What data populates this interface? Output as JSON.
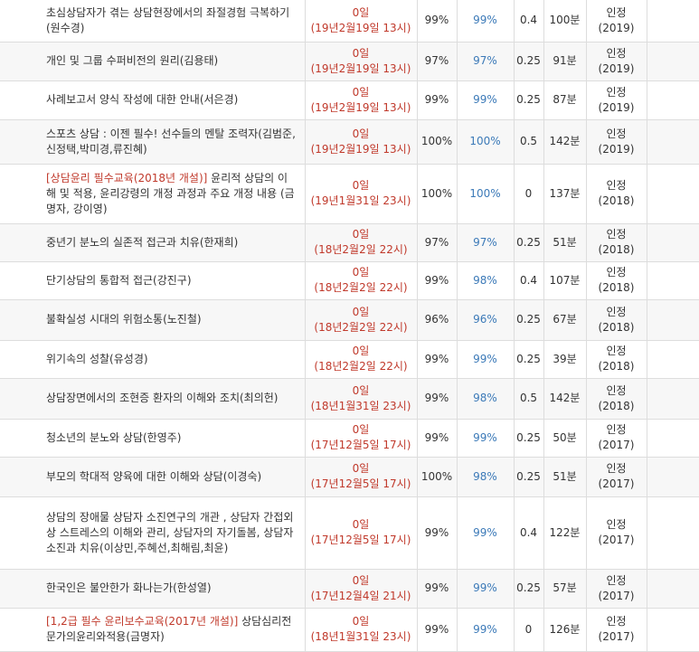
{
  "rows": [
    {
      "title": "초심상담자가 겪는 상담현장에서의 좌절경험 극복하기(원수경)",
      "highlight": "",
      "days": "0일",
      "deadline": "(19년2월19일 13시)",
      "rate1": "99%",
      "rate2": "99%",
      "credit": "0.4",
      "minutes": "100분",
      "status": "인정",
      "year": "(2019)"
    },
    {
      "title": "개인 및 그룹 수퍼비전의 원리(김용태)",
      "highlight": "",
      "days": "0일",
      "deadline": "(19년2월19일 13시)",
      "rate1": "97%",
      "rate2": "97%",
      "credit": "0.25",
      "minutes": "91분",
      "status": "인정",
      "year": "(2019)"
    },
    {
      "title": "사례보고서 양식 작성에 대한 안내(서은경)",
      "highlight": "",
      "days": "0일",
      "deadline": "(19년2월19일 13시)",
      "rate1": "99%",
      "rate2": "99%",
      "credit": "0.25",
      "minutes": "87분",
      "status": "인정",
      "year": "(2019)"
    },
    {
      "title": "스포츠 상담 : 이젠 필수! 선수들의 멘탈 조력자(김범준, 신정택,박미경,류진혜)",
      "highlight": "",
      "days": "0일",
      "deadline": "(19년2월19일 13시)",
      "rate1": "100%",
      "rate2": "100%",
      "credit": "0.5",
      "minutes": "142분",
      "status": "인정",
      "year": "(2019)"
    },
    {
      "title": " 윤리적 상담의 이해 및 적용, 윤리강령의 개정 과정과 주요 개정 내용 (금명자, 강이영)",
      "highlight": "[상담윤리 필수교육(2018년 개설)]",
      "days": "0일",
      "deadline": "(19년1월31일 23시)",
      "rate1": "100%",
      "rate2": "100%",
      "credit": "0",
      "minutes": "137분",
      "status": "인정",
      "year": "(2018)"
    },
    {
      "title": "중년기 분노의 실존적 접근과 치유(한재희)",
      "highlight": "",
      "days": "0일",
      "deadline": "(18년2월2일 22시)",
      "rate1": "97%",
      "rate2": "97%",
      "credit": "0.25",
      "minutes": "51분",
      "status": "인정",
      "year": "(2018)"
    },
    {
      "title": "단기상담의 통합적 접근(강진구)",
      "highlight": "",
      "days": "0일",
      "deadline": "(18년2월2일 22시)",
      "rate1": "99%",
      "rate2": "98%",
      "credit": "0.4",
      "minutes": "107분",
      "status": "인정",
      "year": "(2018)"
    },
    {
      "title": "불확실성 시대의 위험소통(노진철)",
      "highlight": "",
      "days": "0일",
      "deadline": "(18년2월2일 22시)",
      "rate1": "96%",
      "rate2": "96%",
      "credit": "0.25",
      "minutes": "67분",
      "status": "인정",
      "year": "(2018)"
    },
    {
      "title": "위기속의 성찰(유성경)",
      "highlight": "",
      "days": "0일",
      "deadline": "(18년2월2일 22시)",
      "rate1": "99%",
      "rate2": "99%",
      "credit": "0.25",
      "minutes": "39분",
      "status": "인정",
      "year": "(2018)"
    },
    {
      "title": "상담장면에서의 조현증 환자의 이해와 조치(최의헌)",
      "highlight": "",
      "days": "0일",
      "deadline": "(18년1월31일 23시)",
      "rate1": "99%",
      "rate2": "98%",
      "credit": "0.5",
      "minutes": "142분",
      "status": "인정",
      "year": "(2018)"
    },
    {
      "title": "청소년의 분노와 상담(한영주)",
      "highlight": "",
      "days": "0일",
      "deadline": "(17년12월5일 17시)",
      "rate1": "99%",
      "rate2": "99%",
      "credit": "0.25",
      "minutes": "50분",
      "status": "인정",
      "year": "(2017)"
    },
    {
      "title": "부모의 학대적 양육에 대한 이해와 상담(이경숙)",
      "highlight": "",
      "days": "0일",
      "deadline": "(17년12월5일 17시)",
      "rate1": "100%",
      "rate2": "98%",
      "credit": "0.25",
      "minutes": "51분",
      "status": "인정",
      "year": "(2017)"
    },
    {
      "title": "상담의 장애물 상담자 소진연구의 개관 , 상담자 간접외상 스트레스의 이해와 관리, 상담자의 자기돌봄, 상담자 소진과 치유(이상민,주혜선,최해림,최윤)",
      "highlight": "",
      "days": "0일",
      "deadline": "(17년12월5일 17시)",
      "rate1": "99%",
      "rate2": "99%",
      "credit": "0.4",
      "minutes": "122분",
      "status": "인정",
      "year": "(2017)"
    },
    {
      "title": "한국인은 불안한가 화나는가(한성열)",
      "highlight": "",
      "days": "0일",
      "deadline": "(17년12월4일 21시)",
      "rate1": "99%",
      "rate2": "99%",
      "credit": "0.25",
      "minutes": "57분",
      "status": "인정",
      "year": "(2017)"
    },
    {
      "title": " 상담심리전문가의윤리와적용(금명자)",
      "highlight": "[1,2급 필수 윤리보수교육(2017년 개설)]",
      "days": "0일",
      "deadline": "(18년1월31일 23시)",
      "rate1": "99%",
      "rate2": "99%",
      "credit": "0",
      "minutes": "126분",
      "status": "인정",
      "year": "(2017)"
    }
  ]
}
